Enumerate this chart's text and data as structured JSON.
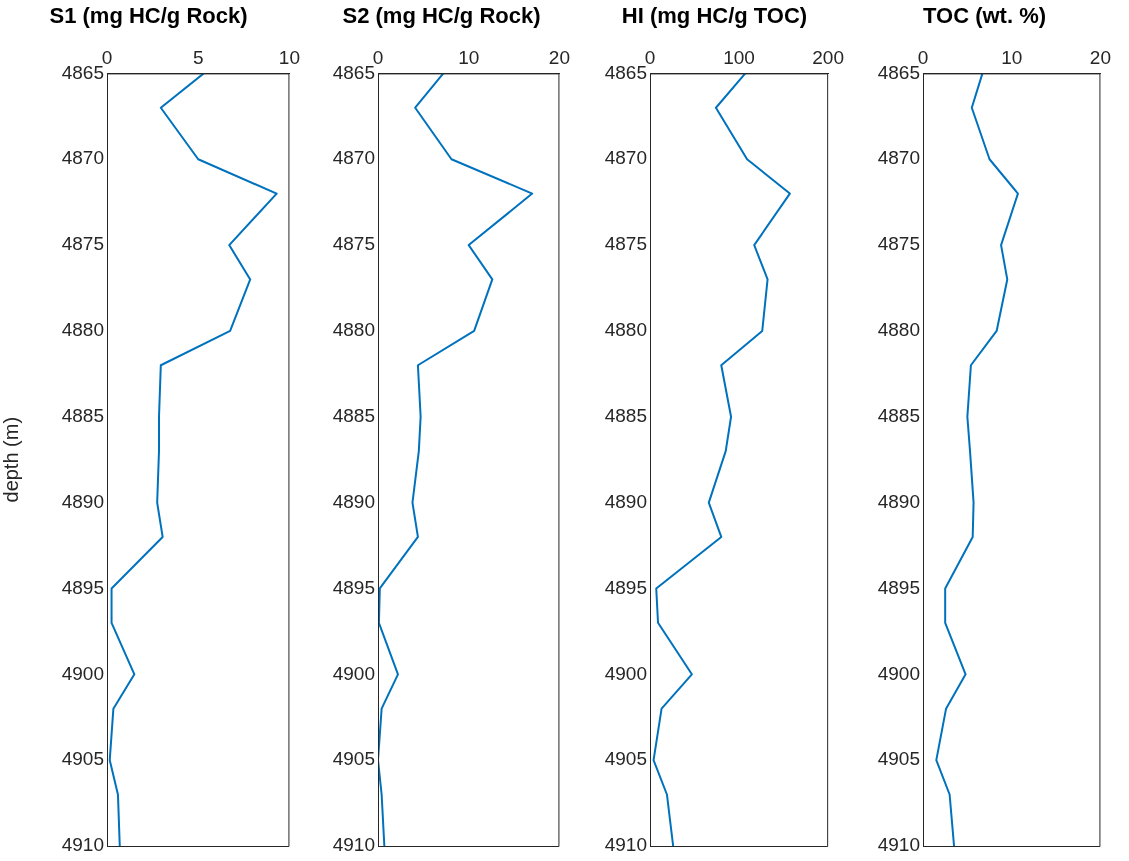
{
  "chart_data": [
    {
      "type": "line",
      "title": "S1 (mg HC/g Rock)",
      "ylabel": "depth (m)",
      "x": [
        5.3,
        2.95,
        5.0,
        9.3,
        6.7,
        7.85,
        6.75,
        2.95,
        2.85,
        2.85,
        2.75,
        3.05,
        0.25,
        0.25,
        1.5,
        0.35,
        0.15,
        0.6,
        0.7
      ],
      "series": [
        {
          "color": "#0072bd",
          "values": [
            4865,
            4867,
            4870,
            4872,
            4875,
            4877,
            4880,
            4882,
            4885,
            4887,
            4890,
            4892,
            4895,
            4897,
            4900,
            4902,
            4905,
            4907,
            4910
          ]
        }
      ],
      "xlim": [
        0,
        10
      ],
      "xticks": [
        0,
        5,
        10
      ],
      "ylim": [
        4910,
        4865
      ],
      "yticks": [
        4865,
        4870,
        4875,
        4880,
        4885,
        4890,
        4895,
        4900,
        4905,
        4910
      ],
      "grid": false,
      "marker": "none",
      "line_style": "solid"
    },
    {
      "type": "line",
      "title": "S2 (mg HC/g Rock)",
      "x": [
        7.2,
        4.1,
        8.1,
        17.0,
        10.0,
        12.6,
        10.6,
        4.4,
        4.7,
        4.5,
        3.8,
        4.4,
        0.2,
        0.1,
        2.2,
        0.4,
        0,
        0.4,
        0.7
      ],
      "series": [
        {
          "color": "#0072bd",
          "values": [
            4865,
            4867,
            4870,
            4872,
            4875,
            4877,
            4880,
            4882,
            4885,
            4887,
            4890,
            4892,
            4895,
            4897,
            4900,
            4902,
            4905,
            4907,
            4910
          ]
        }
      ],
      "xlim": [
        0,
        20
      ],
      "xticks": [
        0,
        10,
        20
      ],
      "ylim": [
        4910,
        4865
      ],
      "yticks": [
        4865,
        4870,
        4875,
        4880,
        4885,
        4890,
        4895,
        4900,
        4905,
        4910
      ],
      "grid": false,
      "marker": "none",
      "line_style": "solid"
    },
    {
      "type": "line",
      "title": "HI (mg HC/g TOC)",
      "x": [
        107,
        74,
        109,
        157,
        117,
        132,
        126,
        80,
        91,
        85,
        66,
        80,
        7,
        9,
        47,
        13,
        4,
        19,
        26
      ],
      "series": [
        {
          "color": "#0072bd",
          "values": [
            4865,
            4867,
            4870,
            4872,
            4875,
            4877,
            4880,
            4882,
            4885,
            4887,
            4890,
            4892,
            4895,
            4897,
            4900,
            4902,
            4905,
            4907,
            4910
          ]
        }
      ],
      "xlim": [
        0,
        200
      ],
      "xticks": [
        0,
        100,
        200
      ],
      "ylim": [
        4910,
        4865
      ],
      "yticks": [
        4865,
        4870,
        4875,
        4880,
        4885,
        4890,
        4895,
        4900,
        4905,
        4910
      ],
      "grid": false,
      "marker": "none",
      "line_style": "solid"
    },
    {
      "type": "line",
      "title": "TOC (wt. %)",
      "x": [
        6.7,
        5.5,
        7.5,
        10.7,
        8.8,
        9.5,
        8.3,
        5.4,
        5.0,
        5.3,
        5.7,
        5.6,
        2.5,
        2.5,
        4.8,
        2.6,
        1.5,
        3.0,
        3.5
      ],
      "series": [
        {
          "color": "#0072bd",
          "values": [
            4865,
            4867,
            4870,
            4872,
            4875,
            4877,
            4880,
            4882,
            4885,
            4887,
            4890,
            4892,
            4895,
            4897,
            4900,
            4902,
            4905,
            4907,
            4910
          ]
        }
      ],
      "xlim": [
        0,
        20
      ],
      "xticks": [
        0,
        10,
        20
      ],
      "ylim": [
        4910,
        4865
      ],
      "yticks": [
        4865,
        4870,
        4875,
        4880,
        4885,
        4890,
        4895,
        4900,
        4905,
        4910
      ],
      "grid": false,
      "marker": "none",
      "line_style": "solid"
    }
  ]
}
